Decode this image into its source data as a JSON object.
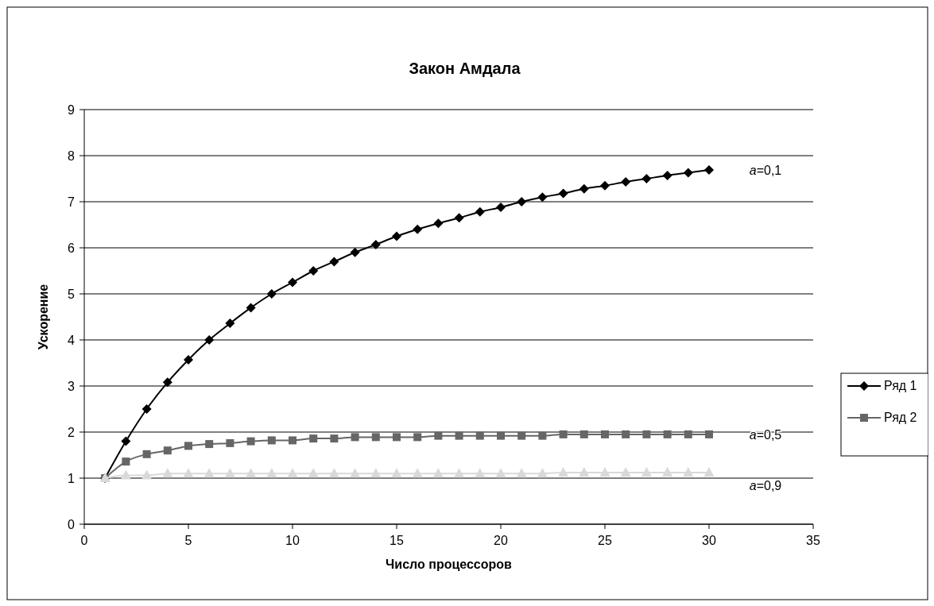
{
  "chart_data": {
    "type": "line",
    "title": "Закон Амдала",
    "xlabel": "Число процессоров",
    "ylabel": "Ускорение",
    "x": [
      1,
      2,
      3,
      4,
      5,
      6,
      7,
      8,
      9,
      10,
      11,
      12,
      13,
      14,
      15,
      16,
      17,
      18,
      19,
      20,
      21,
      22,
      23,
      24,
      25,
      26,
      27,
      28,
      29,
      30
    ],
    "series": [
      {
        "name": "Ряд 1",
        "color": "#000000",
        "marker": "diamond",
        "values": [
          1,
          1.8,
          2.5,
          3.08,
          3.57,
          4,
          4.36,
          4.7,
          5,
          5.25,
          5.5,
          5.7,
          5.9,
          6.07,
          6.25,
          6.4,
          6.53,
          6.65,
          6.78,
          6.88,
          7,
          7.1,
          7.18,
          7.28,
          7.35,
          7.43,
          7.5,
          7.57,
          7.63,
          7.69
        ]
      },
      {
        "name": "Ряд 2",
        "color": "#666666",
        "marker": "square",
        "values": [
          1,
          1.36,
          1.52,
          1.6,
          1.7,
          1.74,
          1.76,
          1.8,
          1.82,
          1.82,
          1.86,
          1.86,
          1.89,
          1.89,
          1.89,
          1.89,
          1.92,
          1.92,
          1.92,
          1.92,
          1.92,
          1.92,
          1.95,
          1.95,
          1.95,
          1.95,
          1.95,
          1.95,
          1.95,
          1.95
        ]
      },
      {
        "color": "#d9d9d9",
        "marker": "triangle",
        "values": [
          1,
          1.06,
          1.06,
          1.1,
          1.1,
          1.1,
          1.1,
          1.1,
          1.1,
          1.1,
          1.1,
          1.1,
          1.1,
          1.1,
          1.1,
          1.1,
          1.1,
          1.1,
          1.1,
          1.1,
          1.1,
          1.1,
          1.12,
          1.12,
          1.12,
          1.12,
          1.12,
          1.12,
          1.12,
          1.12
        ]
      }
    ],
    "xlim": [
      0,
      35
    ],
    "xticks": [
      0,
      5,
      10,
      15,
      20,
      25,
      30,
      35
    ],
    "ylim": [
      0,
      9
    ],
    "yticks": [
      0,
      1,
      2,
      3,
      4,
      5,
      6,
      7,
      8,
      9
    ],
    "grid": "y",
    "legend": "right",
    "annotations": [
      "a=0,1",
      "a=0,5",
      "a=0,9"
    ]
  }
}
